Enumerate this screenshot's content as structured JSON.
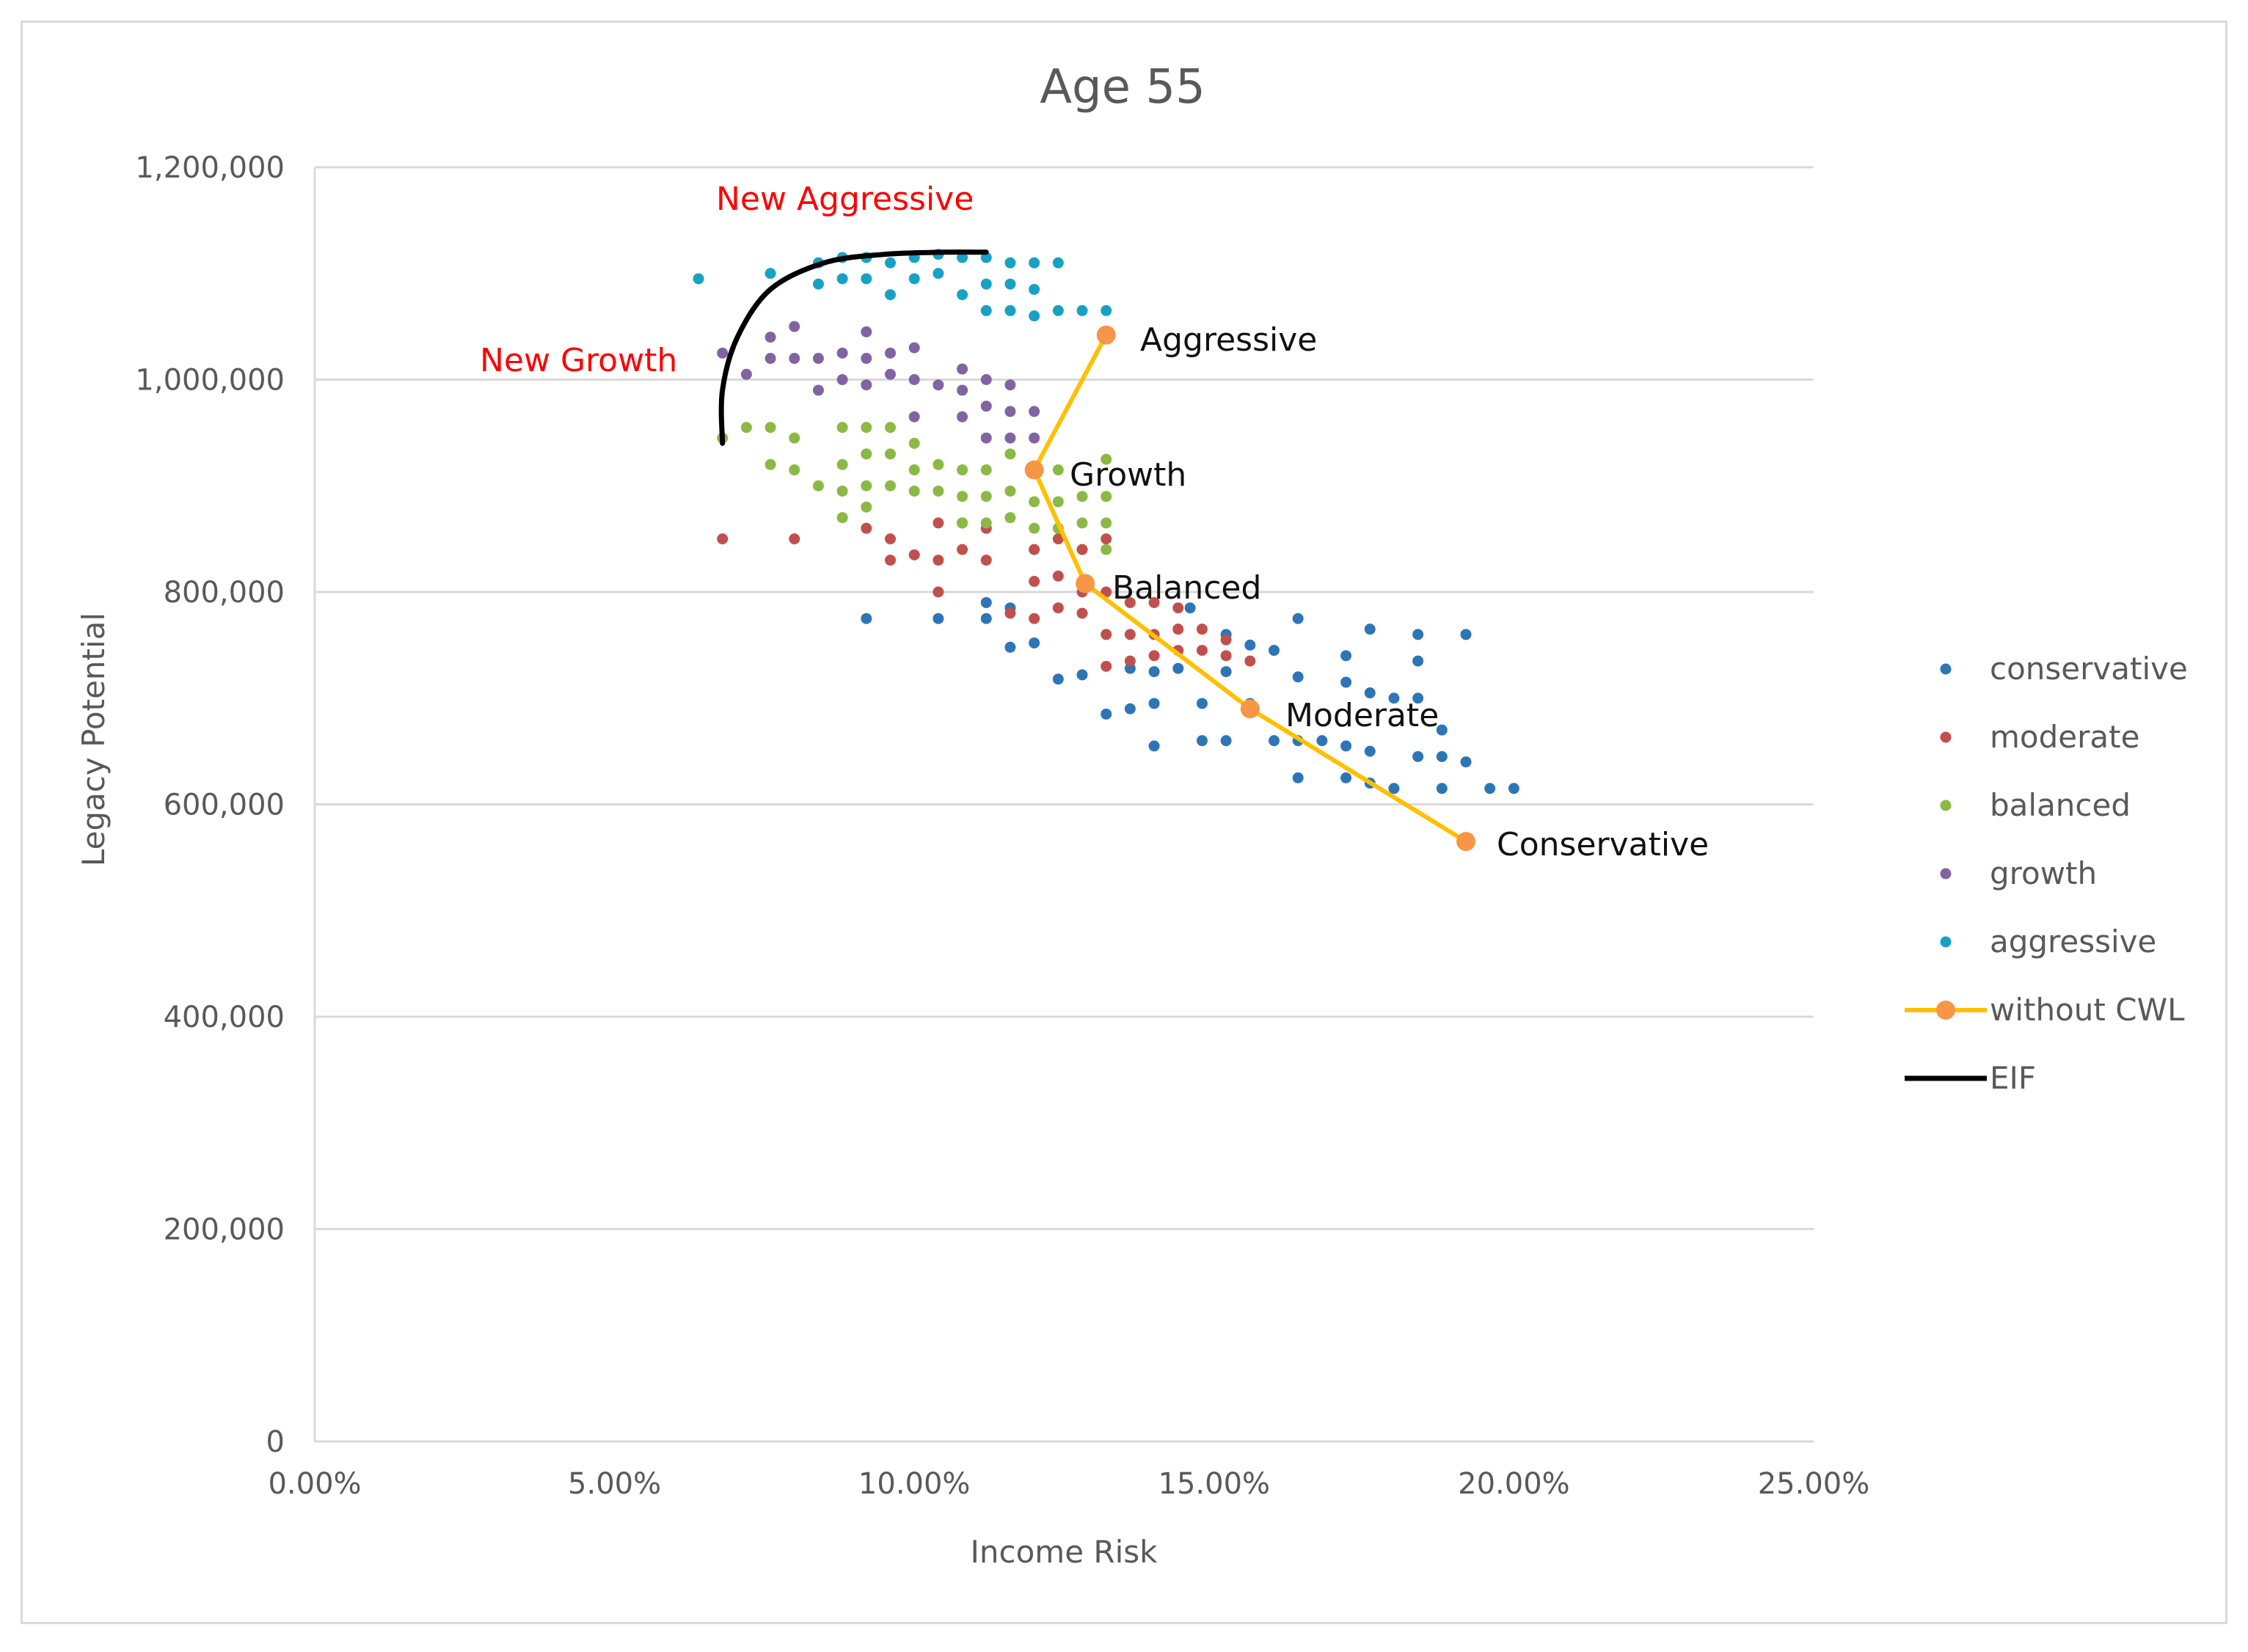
{
  "chart_data": {
    "type": "scatter",
    "title": "Age 55",
    "xlabel": "Income Risk",
    "ylabel": "Legacy Potential",
    "xlim": [
      0,
      0.25
    ],
    "ylim": [
      0,
      1200000
    ],
    "x_ticks": [
      {
        "value": 0,
        "label": "0.00%"
      },
      {
        "value": 0.05,
        "label": "5.00%"
      },
      {
        "value": 0.1,
        "label": "10.00%"
      },
      {
        "value": 0.15,
        "label": "15.00%"
      },
      {
        "value": 0.2,
        "label": "20.00%"
      },
      {
        "value": 0.25,
        "label": "25.00%"
      }
    ],
    "y_ticks": [
      {
        "value": 0,
        "label": "0"
      },
      {
        "value": 200000,
        "label": "200,000"
      },
      {
        "value": 400000,
        "label": "400,000"
      },
      {
        "value": 600000,
        "label": "600,000"
      },
      {
        "value": 800000,
        "label": "800,000"
      },
      {
        "value": 1000000,
        "label": "1,000,000"
      },
      {
        "value": 1200000,
        "label": "1,200,000"
      }
    ],
    "grid": "horizontal",
    "legend_position": "right",
    "series": [
      {
        "name": "conservative",
        "kind": "scatter",
        "color": "#2e75b6",
        "points": [
          [
            0.092,
            775000
          ],
          [
            0.104,
            775000
          ],
          [
            0.112,
            790000
          ],
          [
            0.112,
            775000
          ],
          [
            0.116,
            785000
          ],
          [
            0.116,
            748000
          ],
          [
            0.12,
            752000
          ],
          [
            0.124,
            718000
          ],
          [
            0.128,
            722000
          ],
          [
            0.132,
            685000
          ],
          [
            0.136,
            690000
          ],
          [
            0.136,
            728000
          ],
          [
            0.14,
            655000
          ],
          [
            0.14,
            695000
          ],
          [
            0.14,
            725000
          ],
          [
            0.144,
            728000
          ],
          [
            0.148,
            695000
          ],
          [
            0.148,
            660000
          ],
          [
            0.152,
            660000
          ],
          [
            0.152,
            725000
          ],
          [
            0.152,
            760000
          ],
          [
            0.156,
            695000
          ],
          [
            0.156,
            750000
          ],
          [
            0.16,
            660000
          ],
          [
            0.16,
            745000
          ],
          [
            0.164,
            625000
          ],
          [
            0.164,
            660000
          ],
          [
            0.164,
            720000
          ],
          [
            0.164,
            775000
          ],
          [
            0.168,
            660000
          ],
          [
            0.172,
            625000
          ],
          [
            0.172,
            655000
          ],
          [
            0.172,
            715000
          ],
          [
            0.172,
            740000
          ],
          [
            0.176,
            620000
          ],
          [
            0.176,
            650000
          ],
          [
            0.176,
            705000
          ],
          [
            0.176,
            765000
          ],
          [
            0.18,
            615000
          ],
          [
            0.18,
            700000
          ],
          [
            0.184,
            645000
          ],
          [
            0.184,
            700000
          ],
          [
            0.184,
            735000
          ],
          [
            0.184,
            760000
          ],
          [
            0.188,
            615000
          ],
          [
            0.188,
            645000
          ],
          [
            0.188,
            670000
          ],
          [
            0.192,
            640000
          ],
          [
            0.192,
            760000
          ],
          [
            0.196,
            615000
          ],
          [
            0.2,
            615000
          ],
          [
            0.146,
            785000
          ]
        ]
      },
      {
        "name": "moderate",
        "kind": "scatter",
        "color": "#c0504d",
        "points": [
          [
            0.068,
            850000
          ],
          [
            0.08,
            850000
          ],
          [
            0.092,
            860000
          ],
          [
            0.096,
            830000
          ],
          [
            0.096,
            850000
          ],
          [
            0.1,
            835000
          ],
          [
            0.104,
            800000
          ],
          [
            0.104,
            830000
          ],
          [
            0.104,
            865000
          ],
          [
            0.108,
            840000
          ],
          [
            0.108,
            865000
          ],
          [
            0.112,
            830000
          ],
          [
            0.112,
            860000
          ],
          [
            0.116,
            780000
          ],
          [
            0.12,
            775000
          ],
          [
            0.12,
            810000
          ],
          [
            0.12,
            840000
          ],
          [
            0.124,
            785000
          ],
          [
            0.124,
            815000
          ],
          [
            0.124,
            850000
          ],
          [
            0.128,
            780000
          ],
          [
            0.128,
            800000
          ],
          [
            0.128,
            840000
          ],
          [
            0.132,
            730000
          ],
          [
            0.132,
            760000
          ],
          [
            0.132,
            800000
          ],
          [
            0.132,
            850000
          ],
          [
            0.136,
            735000
          ],
          [
            0.136,
            760000
          ],
          [
            0.136,
            790000
          ],
          [
            0.14,
            740000
          ],
          [
            0.14,
            760000
          ],
          [
            0.14,
            790000
          ],
          [
            0.144,
            745000
          ],
          [
            0.144,
            765000
          ],
          [
            0.144,
            785000
          ],
          [
            0.148,
            745000
          ],
          [
            0.148,
            765000
          ],
          [
            0.152,
            740000
          ],
          [
            0.152,
            755000
          ],
          [
            0.156,
            735000
          ]
        ]
      },
      {
        "name": "balanced",
        "kind": "scatter",
        "color": "#8cb845",
        "points": [
          [
            0.068,
            945000
          ],
          [
            0.072,
            955000
          ],
          [
            0.076,
            955000
          ],
          [
            0.076,
            920000
          ],
          [
            0.08,
            945000
          ],
          [
            0.08,
            915000
          ],
          [
            0.084,
            900000
          ],
          [
            0.088,
            955000
          ],
          [
            0.088,
            920000
          ],
          [
            0.088,
            895000
          ],
          [
            0.088,
            870000
          ],
          [
            0.092,
            955000
          ],
          [
            0.092,
            930000
          ],
          [
            0.092,
            900000
          ],
          [
            0.092,
            880000
          ],
          [
            0.096,
            955000
          ],
          [
            0.096,
            930000
          ],
          [
            0.096,
            900000
          ],
          [
            0.1,
            940000
          ],
          [
            0.1,
            915000
          ],
          [
            0.1,
            895000
          ],
          [
            0.104,
            920000
          ],
          [
            0.104,
            895000
          ],
          [
            0.108,
            915000
          ],
          [
            0.108,
            890000
          ],
          [
            0.108,
            865000
          ],
          [
            0.112,
            915000
          ],
          [
            0.112,
            890000
          ],
          [
            0.112,
            865000
          ],
          [
            0.116,
            930000
          ],
          [
            0.116,
            895000
          ],
          [
            0.116,
            870000
          ],
          [
            0.12,
            885000
          ],
          [
            0.12,
            860000
          ],
          [
            0.124,
            915000
          ],
          [
            0.124,
            885000
          ],
          [
            0.124,
            860000
          ],
          [
            0.128,
            890000
          ],
          [
            0.128,
            865000
          ],
          [
            0.132,
            925000
          ],
          [
            0.132,
            890000
          ],
          [
            0.132,
            865000
          ],
          [
            0.132,
            840000
          ]
        ]
      },
      {
        "name": "growth",
        "kind": "scatter",
        "color": "#8064a2",
        "points": [
          [
            0.068,
            1025000
          ],
          [
            0.072,
            1005000
          ],
          [
            0.076,
            1040000
          ],
          [
            0.076,
            1020000
          ],
          [
            0.08,
            1050000
          ],
          [
            0.08,
            1020000
          ],
          [
            0.084,
            1020000
          ],
          [
            0.084,
            990000
          ],
          [
            0.088,
            1025000
          ],
          [
            0.088,
            1000000
          ],
          [
            0.092,
            1045000
          ],
          [
            0.092,
            1020000
          ],
          [
            0.092,
            995000
          ],
          [
            0.096,
            1025000
          ],
          [
            0.096,
            1005000
          ],
          [
            0.1,
            1030000
          ],
          [
            0.1,
            1000000
          ],
          [
            0.1,
            965000
          ],
          [
            0.104,
            995000
          ],
          [
            0.108,
            1010000
          ],
          [
            0.108,
            990000
          ],
          [
            0.108,
            965000
          ],
          [
            0.112,
            1000000
          ],
          [
            0.112,
            975000
          ],
          [
            0.112,
            945000
          ],
          [
            0.116,
            995000
          ],
          [
            0.116,
            970000
          ],
          [
            0.116,
            945000
          ],
          [
            0.12,
            970000
          ],
          [
            0.12,
            945000
          ]
        ]
      },
      {
        "name": "aggressive",
        "kind": "scatter",
        "color": "#17a2c4",
        "points": [
          [
            0.064,
            1095000
          ],
          [
            0.076,
            1100000
          ],
          [
            0.084,
            1110000
          ],
          [
            0.084,
            1090000
          ],
          [
            0.088,
            1115000
          ],
          [
            0.088,
            1095000
          ],
          [
            0.092,
            1115000
          ],
          [
            0.092,
            1095000
          ],
          [
            0.096,
            1110000
          ],
          [
            0.096,
            1080000
          ],
          [
            0.1,
            1115000
          ],
          [
            0.1,
            1095000
          ],
          [
            0.104,
            1118000
          ],
          [
            0.104,
            1100000
          ],
          [
            0.108,
            1115000
          ],
          [
            0.108,
            1080000
          ],
          [
            0.112,
            1115000
          ],
          [
            0.112,
            1090000
          ],
          [
            0.112,
            1065000
          ],
          [
            0.116,
            1110000
          ],
          [
            0.116,
            1090000
          ],
          [
            0.116,
            1065000
          ],
          [
            0.12,
            1110000
          ],
          [
            0.12,
            1085000
          ],
          [
            0.12,
            1060000
          ],
          [
            0.124,
            1110000
          ],
          [
            0.124,
            1065000
          ],
          [
            0.128,
            1065000
          ],
          [
            0.132,
            1065000
          ]
        ]
      },
      {
        "name": "without CWL",
        "kind": "line-marker",
        "color": "#ffc000",
        "marker_color": "#f79646",
        "points": [
          [
            0.132,
            1042000
          ],
          [
            0.12,
            915000
          ],
          [
            0.1285,
            808000
          ],
          [
            0.156,
            690000
          ],
          [
            0.192,
            565000
          ]
        ]
      },
      {
        "name": "EIF",
        "kind": "line",
        "color": "#000000",
        "points": [
          [
            0.068,
            940000
          ],
          [
            0.068,
            990000
          ],
          [
            0.0705,
            1040000
          ],
          [
            0.076,
            1085000
          ],
          [
            0.085,
            1110000
          ],
          [
            0.095,
            1118000
          ],
          [
            0.105,
            1120000
          ],
          [
            0.112,
            1120000
          ]
        ]
      }
    ],
    "annotations": [
      {
        "text": "Aggressive",
        "style": "black"
      },
      {
        "text": "Growth",
        "style": "black"
      },
      {
        "text": "Balanced",
        "style": "black"
      },
      {
        "text": "Moderate",
        "style": "black"
      },
      {
        "text": "Conservative",
        "style": "black"
      },
      {
        "text": "New Aggressive",
        "style": "red"
      },
      {
        "text": "New Growth",
        "style": "red"
      }
    ]
  }
}
